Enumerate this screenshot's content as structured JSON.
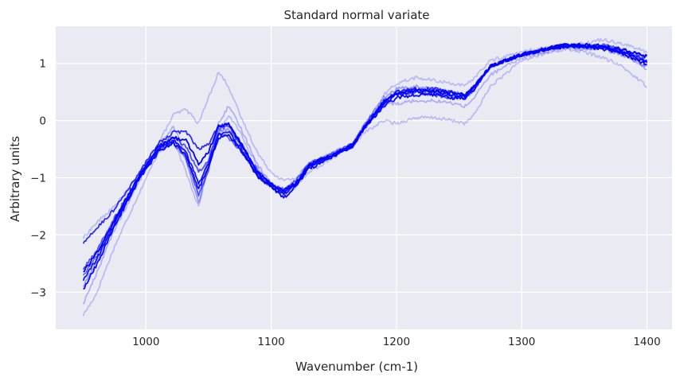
{
  "chart_data": {
    "type": "line",
    "title": "Standard normal variate",
    "xlabel": "Wavenumber (cm-1)",
    "ylabel": "Arbitrary units",
    "xlim": [
      928,
      1420
    ],
    "ylim": [
      -3.65,
      1.65
    ],
    "xticks": [
      1000,
      1100,
      1200,
      1300,
      1400
    ],
    "yticks": [
      1,
      0,
      -1,
      -2,
      -3
    ],
    "ytick_labels": [
      "1",
      "0",
      "−1",
      "−2",
      "−3"
    ],
    "grid": true,
    "background": "#eaeaf2",
    "line_color": "#0000ff",
    "series": [
      {
        "opacity": 0.2,
        "x": [
          950,
          960,
          975,
          995,
          1010,
          1022,
          1032,
          1042,
          1050,
          1058,
          1066,
          1075,
          1090,
          1100,
          1110,
          1120,
          1130,
          1150,
          1165,
          1175,
          1190,
          1200,
          1215,
          1230,
          1245,
          1255,
          1262,
          1275,
          1300,
          1320,
          1335,
          1350,
          1365,
          1380,
          1400
        ],
        "y": [
          -3.4,
          -3.05,
          -2.2,
          -1.25,
          -0.55,
          -0.35,
          -0.9,
          -1.5,
          -0.8,
          -0.25,
          0.1,
          -0.2,
          -0.85,
          -1.15,
          -1.3,
          -1.15,
          -0.9,
          -0.65,
          -0.45,
          -0.2,
          0.0,
          -0.05,
          0.05,
          0.05,
          0.0,
          -0.05,
          0.1,
          0.6,
          1.05,
          1.18,
          1.25,
          1.2,
          1.1,
          0.95,
          0.6
        ]
      },
      {
        "opacity": 0.2,
        "x": [
          950,
          960,
          975,
          995,
          1010,
          1022,
          1032,
          1042,
          1050,
          1058,
          1066,
          1075,
          1090,
          1100,
          1110,
          1120,
          1130,
          1150,
          1165,
          1175,
          1190,
          1200,
          1215,
          1230,
          1245,
          1255,
          1262,
          1275,
          1300,
          1320,
          1335,
          1350,
          1365,
          1380,
          1400
        ],
        "y": [
          -2.05,
          -1.8,
          -1.5,
          -0.95,
          -0.4,
          0.1,
          0.2,
          -0.05,
          0.4,
          0.85,
          0.6,
          0.1,
          -0.6,
          -0.9,
          -1.05,
          -1.0,
          -0.75,
          -0.55,
          -0.4,
          -0.1,
          0.45,
          0.65,
          0.75,
          0.7,
          0.65,
          0.6,
          0.75,
          1.05,
          1.2,
          1.28,
          1.32,
          1.35,
          1.42,
          1.35,
          1.2
        ]
      },
      {
        "opacity": 0.25,
        "x": [
          950,
          960,
          975,
          995,
          1010,
          1022,
          1032,
          1042,
          1050,
          1058,
          1066,
          1075,
          1090,
          1100,
          1110,
          1120,
          1130,
          1150,
          1165,
          1175,
          1190,
          1200,
          1215,
          1230,
          1245,
          1255,
          1262,
          1275,
          1300,
          1320,
          1335,
          1350,
          1365,
          1380,
          1400
        ],
        "y": [
          -3.2,
          -2.7,
          -1.9,
          -1.05,
          -0.45,
          -0.1,
          -0.6,
          -1.3,
          -0.7,
          -0.05,
          0.25,
          -0.1,
          -0.8,
          -1.1,
          -1.2,
          -1.05,
          -0.75,
          -0.6,
          -0.4,
          -0.05,
          0.3,
          0.3,
          0.35,
          0.35,
          0.3,
          0.25,
          0.4,
          0.8,
          1.1,
          1.2,
          1.28,
          1.25,
          1.3,
          1.2,
          0.9
        ]
      },
      {
        "opacity": 0.35,
        "x": [
          950,
          960,
          975,
          995,
          1010,
          1022,
          1032,
          1042,
          1050,
          1058,
          1066,
          1075,
          1090,
          1100,
          1110,
          1120,
          1130,
          1150,
          1165,
          1175,
          1190,
          1200,
          1215,
          1230,
          1245,
          1255,
          1262,
          1275,
          1300,
          1320,
          1335,
          1350,
          1365,
          1380,
          1400
        ],
        "y": [
          -2.9,
          -2.5,
          -1.8,
          -1.0,
          -0.5,
          -0.3,
          -0.7,
          -1.45,
          -0.75,
          -0.2,
          -0.15,
          -0.4,
          -1.0,
          -1.15,
          -1.25,
          -1.1,
          -0.8,
          -0.55,
          -0.45,
          -0.05,
          0.4,
          0.55,
          0.6,
          0.55,
          0.5,
          0.45,
          0.6,
          0.95,
          1.15,
          1.25,
          1.3,
          1.28,
          1.25,
          1.15,
          0.95
        ]
      },
      {
        "opacity": 0.55,
        "x": [
          950,
          960,
          975,
          995,
          1010,
          1022,
          1032,
          1042,
          1050,
          1058,
          1066,
          1075,
          1090,
          1100,
          1110,
          1120,
          1130,
          1150,
          1165,
          1175,
          1190,
          1200,
          1215,
          1230,
          1245,
          1255,
          1262,
          1275,
          1300,
          1320,
          1335,
          1350,
          1365,
          1380,
          1400
        ],
        "y": [
          -2.7,
          -2.4,
          -1.75,
          -0.95,
          -0.5,
          -0.4,
          -0.65,
          -1.3,
          -0.85,
          -0.2,
          -0.3,
          -0.5,
          -0.95,
          -1.1,
          -1.2,
          -1.05,
          -0.75,
          -0.58,
          -0.4,
          -0.08,
          0.35,
          0.5,
          0.55,
          0.5,
          0.45,
          0.45,
          0.6,
          0.95,
          1.15,
          1.25,
          1.3,
          1.3,
          1.3,
          1.22,
          1.05
        ]
      },
      {
        "opacity": 0.65,
        "x": [
          950,
          960,
          975,
          995,
          1010,
          1022,
          1032,
          1042,
          1050,
          1058,
          1066,
          1075,
          1090,
          1100,
          1110,
          1120,
          1130,
          1150,
          1165,
          1175,
          1190,
          1200,
          1215,
          1230,
          1245,
          1255,
          1262,
          1275,
          1300,
          1320,
          1335,
          1350,
          1365,
          1380,
          1400
        ],
        "y": [
          -2.6,
          -2.3,
          -1.7,
          -0.95,
          -0.45,
          -0.3,
          -0.45,
          -0.9,
          -0.7,
          -0.15,
          -0.1,
          -0.4,
          -0.9,
          -1.1,
          -1.25,
          -1.1,
          -0.8,
          -0.6,
          -0.45,
          -0.12,
          0.3,
          0.45,
          0.5,
          0.45,
          0.4,
          0.4,
          0.55,
          0.95,
          1.15,
          1.25,
          1.32,
          1.3,
          1.32,
          1.25,
          1.1
        ]
      },
      {
        "opacity": 0.8,
        "x": [
          950,
          960,
          975,
          995,
          1010,
          1022,
          1032,
          1042,
          1050,
          1058,
          1066,
          1075,
          1090,
          1100,
          1110,
          1120,
          1130,
          1150,
          1165,
          1175,
          1190,
          1200,
          1215,
          1230,
          1245,
          1255,
          1262,
          1275,
          1300,
          1320,
          1335,
          1350,
          1365,
          1380,
          1400
        ],
        "y": [
          -2.15,
          -1.9,
          -1.55,
          -0.9,
          -0.4,
          -0.2,
          -0.2,
          -0.5,
          -0.4,
          -0.1,
          -0.05,
          -0.35,
          -0.95,
          -1.1,
          -1.25,
          -1.1,
          -0.8,
          -0.6,
          -0.45,
          -0.1,
          0.35,
          0.5,
          0.55,
          0.55,
          0.5,
          0.45,
          0.6,
          0.95,
          1.15,
          1.25,
          1.32,
          1.3,
          1.28,
          1.2,
          1.05
        ]
      },
      {
        "opacity": 0.9,
        "x": [
          950,
          960,
          975,
          995,
          1010,
          1022,
          1032,
          1042,
          1050,
          1058,
          1066,
          1075,
          1090,
          1100,
          1110,
          1120,
          1130,
          1150,
          1165,
          1175,
          1190,
          1200,
          1215,
          1230,
          1245,
          1255,
          1262,
          1275,
          1300,
          1320,
          1335,
          1350,
          1365,
          1380,
          1400
        ],
        "y": [
          -2.8,
          -2.45,
          -1.8,
          -1.0,
          -0.5,
          -0.35,
          -0.55,
          -1.1,
          -0.75,
          -0.25,
          -0.2,
          -0.45,
          -1.0,
          -1.15,
          -1.3,
          -1.1,
          -0.8,
          -0.6,
          -0.45,
          -0.12,
          0.3,
          0.45,
          0.5,
          0.5,
          0.45,
          0.42,
          0.58,
          0.95,
          1.15,
          1.25,
          1.32,
          1.3,
          1.28,
          1.2,
          1.02
        ]
      },
      {
        "opacity": 0.95,
        "x": [
          950,
          960,
          975,
          995,
          1010,
          1022,
          1032,
          1042,
          1050,
          1058,
          1066,
          1075,
          1090,
          1100,
          1110,
          1120,
          1130,
          1150,
          1165,
          1175,
          1190,
          1200,
          1215,
          1230,
          1245,
          1255,
          1262,
          1275,
          1300,
          1320,
          1335,
          1350,
          1365,
          1380,
          1400
        ],
        "y": [
          -2.95,
          -2.55,
          -1.85,
          -1.0,
          -0.55,
          -0.4,
          -0.6,
          -1.2,
          -0.8,
          -0.3,
          -0.25,
          -0.5,
          -1.0,
          -1.15,
          -1.35,
          -1.15,
          -0.85,
          -0.62,
          -0.45,
          -0.1,
          0.25,
          0.4,
          0.45,
          0.45,
          0.4,
          0.4,
          0.55,
          0.95,
          1.15,
          1.25,
          1.3,
          1.3,
          1.25,
          1.18,
          0.98
        ]
      },
      {
        "opacity": 1.0,
        "x": [
          950,
          960,
          975,
          995,
          1010,
          1022,
          1032,
          1042,
          1050,
          1058,
          1066,
          1075,
          1090,
          1100,
          1110,
          1120,
          1130,
          1150,
          1165,
          1175,
          1190,
          1200,
          1215,
          1230,
          1245,
          1255,
          1262,
          1275,
          1300,
          1320,
          1335,
          1350,
          1365,
          1380,
          1400
        ],
        "y": [
          -2.65,
          -2.35,
          -1.75,
          -0.95,
          -0.45,
          -0.3,
          -0.35,
          -0.75,
          -0.55,
          -0.1,
          -0.05,
          -0.38,
          -0.92,
          -1.12,
          -1.22,
          -1.08,
          -0.78,
          -0.58,
          -0.42,
          -0.08,
          0.32,
          0.48,
          0.52,
          0.52,
          0.48,
          0.45,
          0.6,
          0.95,
          1.16,
          1.26,
          1.32,
          1.32,
          1.3,
          1.25,
          1.12
        ]
      }
    ]
  }
}
